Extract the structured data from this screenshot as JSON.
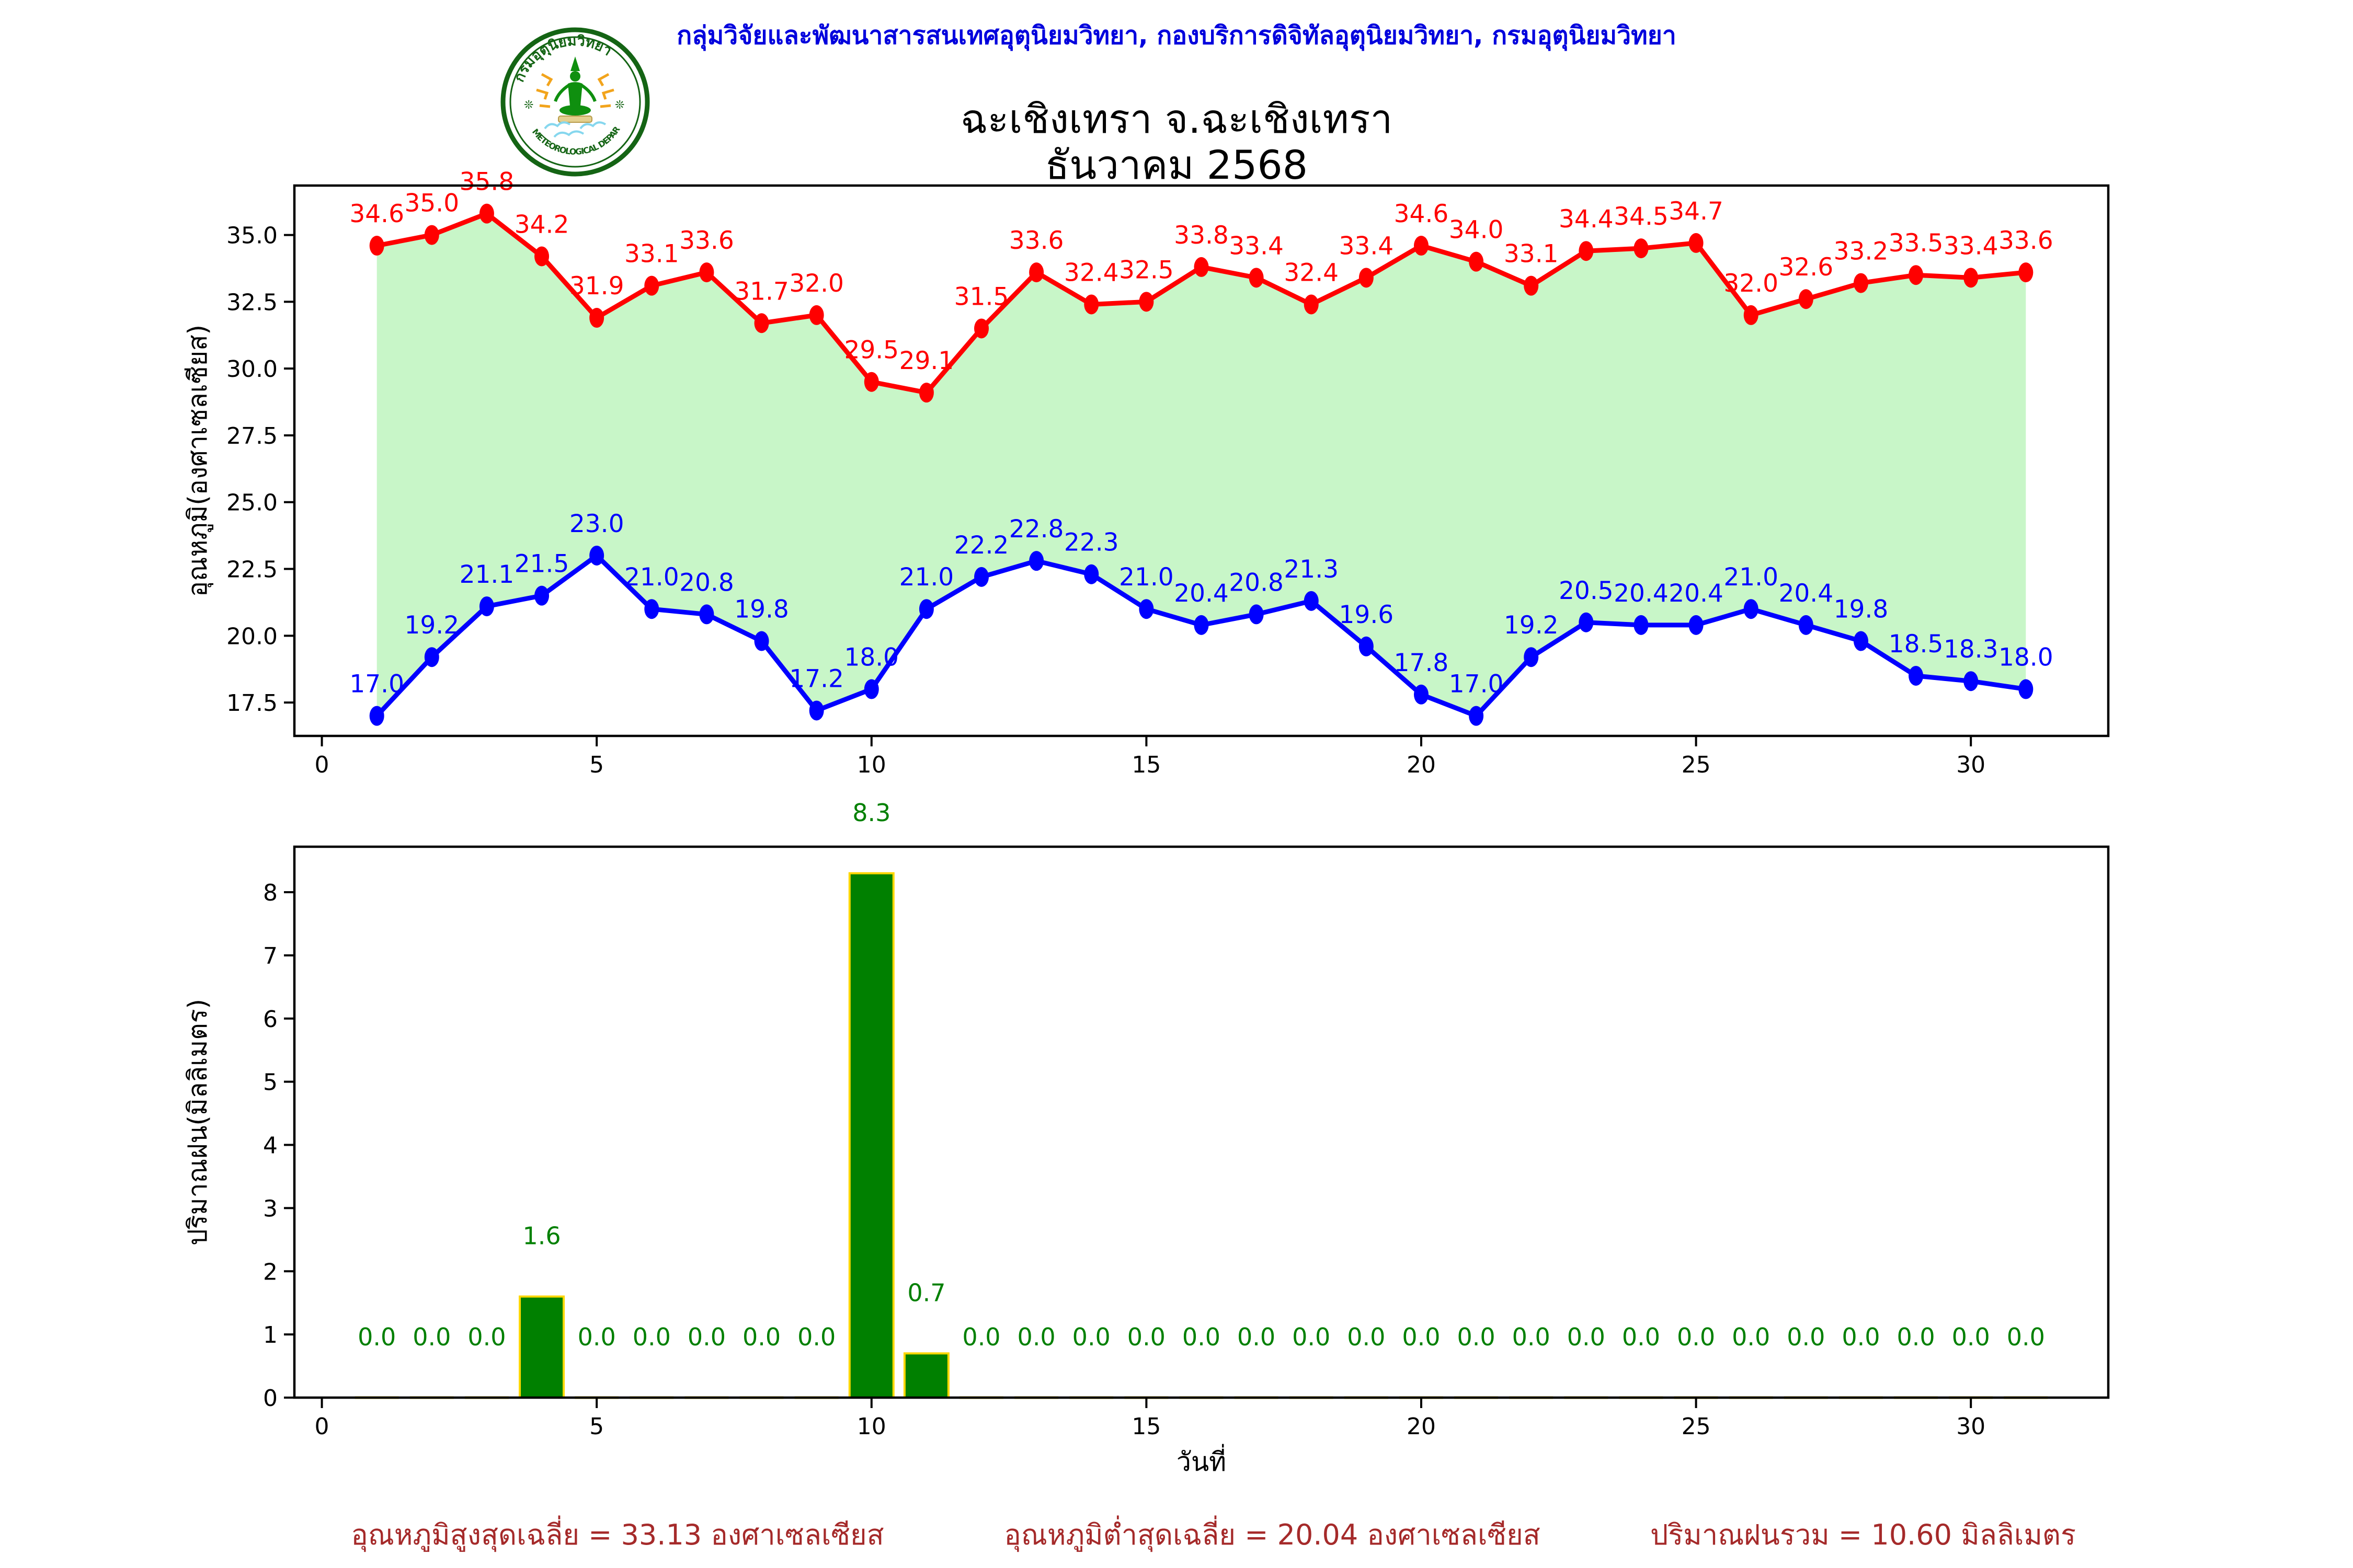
{
  "header": {
    "org_line": "กลุ่มวิจัยและพัฒนาสารสนเทศอุตุนิยมวิทยา, กองบริการดิจิทัลอุตุนิยมวิทยา, กรมอุตุนิยมวิทยา",
    "title": "ฉะเชิงเทรา จ.ฉะเชิงเทรา",
    "subtitle": "ธันวาคม 2568"
  },
  "logo": {
    "top_text": "กรมอุตุนิยมวิทยา",
    "bottom_text": "METEOROLOGICAL DEPARTMENT"
  },
  "summary": {
    "max_avg": "อุณหภูมิสูงสุดเฉลี่ย = 33.13 องศาเซลเซียส",
    "min_avg": "อุณหภูมิต่ำสุดเฉลี่ย = 20.04 องศาเซลเซียส",
    "rain_total": "ปริมาณฝนรวม = 10.60 มิลลิเมตร"
  },
  "colors": {
    "header_blue": "#0000dd",
    "max_temp_red": "#ff0000",
    "min_temp_blue": "#0000ff",
    "band_green": "#c8f6c8",
    "bar_green": "#008000",
    "bar_edge_gold": "#ffd700",
    "summary_brown": "#a52a2a",
    "axis_black": "#000000"
  },
  "chart_data": [
    {
      "type": "line",
      "ylabel": "อุณหภูมิ(องศาเซลเซียส)",
      "x": [
        1,
        2,
        3,
        4,
        5,
        6,
        7,
        8,
        9,
        10,
        11,
        12,
        13,
        14,
        15,
        16,
        17,
        18,
        19,
        20,
        21,
        22,
        23,
        24,
        25,
        26,
        27,
        28,
        29,
        30,
        31
      ],
      "series": [
        {
          "name": "max-temp",
          "color": "#ff0000",
          "values": [
            34.6,
            35.0,
            35.8,
            34.2,
            31.9,
            33.1,
            33.6,
            31.7,
            32.0,
            29.5,
            29.1,
            31.5,
            33.6,
            32.4,
            32.5,
            33.8,
            33.4,
            32.4,
            33.4,
            34.6,
            34.0,
            33.1,
            34.4,
            34.5,
            34.7,
            32.0,
            32.6,
            33.2,
            33.5,
            33.4,
            33.6
          ]
        },
        {
          "name": "min-temp",
          "color": "#0000ff",
          "values": [
            17.0,
            19.2,
            21.1,
            21.5,
            23.0,
            21.0,
            20.8,
            19.8,
            17.2,
            18.0,
            21.0,
            22.2,
            22.8,
            22.3,
            21.0,
            20.4,
            20.8,
            21.3,
            19.6,
            17.8,
            17.0,
            19.2,
            20.5,
            20.4,
            20.4,
            21.0,
            20.4,
            19.8,
            18.5,
            18.3,
            18.0
          ]
        }
      ],
      "fill_between": true,
      "fill_color": "#c8f6c8",
      "yticks": [
        17.5,
        20.0,
        22.5,
        25.0,
        27.5,
        30.0,
        32.5,
        35.0
      ],
      "xticks": [
        0,
        5,
        10,
        15,
        20,
        25,
        30
      ],
      "ylim": [
        16.25,
        36.85
      ],
      "xlim": [
        -0.5,
        32.5
      ],
      "grid": false,
      "legend": "none"
    },
    {
      "type": "bar",
      "xlabel": "วันที่",
      "ylabel": "ปริมาณฝน(มิลลิเมตร)",
      "x": [
        1,
        2,
        3,
        4,
        5,
        6,
        7,
        8,
        9,
        10,
        11,
        12,
        13,
        14,
        15,
        16,
        17,
        18,
        19,
        20,
        21,
        22,
        23,
        24,
        25,
        26,
        27,
        28,
        29,
        30,
        31
      ],
      "values": [
        0.0,
        0.0,
        0.0,
        1.6,
        0.0,
        0.0,
        0.0,
        0.0,
        0.0,
        8.3,
        0.7,
        0.0,
        0.0,
        0.0,
        0.0,
        0.0,
        0.0,
        0.0,
        0.0,
        0.0,
        0.0,
        0.0,
        0.0,
        0.0,
        0.0,
        0.0,
        0.0,
        0.0,
        0.0,
        0.0,
        0.0
      ],
      "bar_color": "#008000",
      "bar_edge_color": "#ffd700",
      "label_color": "#008000",
      "yticks": [
        0,
        1,
        2,
        3,
        4,
        5,
        6,
        7,
        8
      ],
      "xticks": [
        0,
        5,
        10,
        15,
        20,
        25,
        30
      ],
      "ylim": [
        0,
        8.72
      ],
      "xlim": [
        -0.5,
        32.5
      ],
      "grid": false,
      "legend": "none"
    }
  ]
}
